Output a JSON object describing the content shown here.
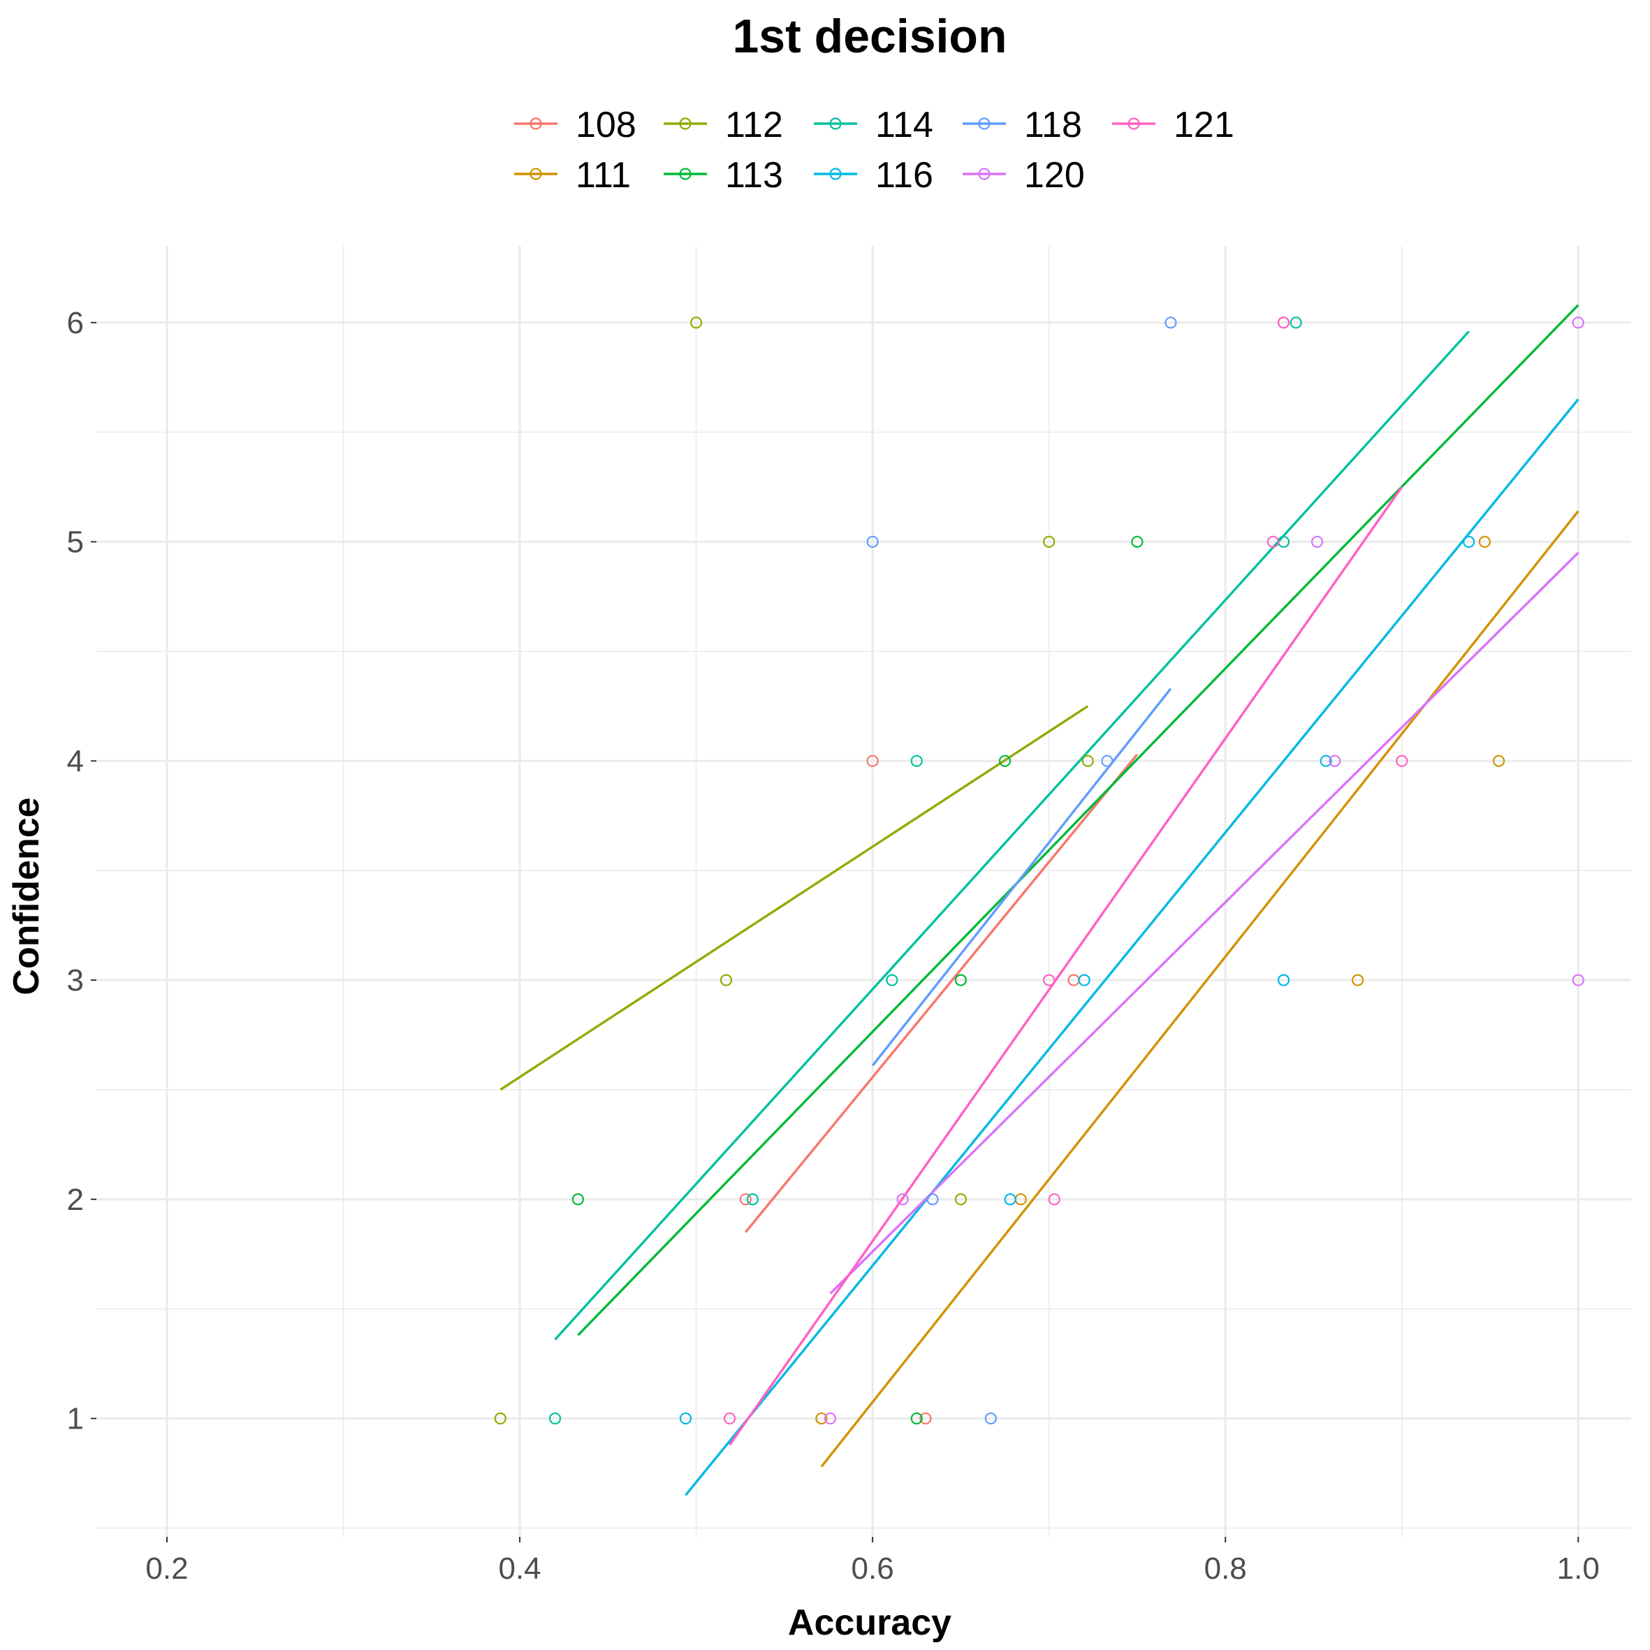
{
  "chart_data": {
    "type": "scatter",
    "title": "1st decision",
    "xlabel": "Accuracy",
    "ylabel": "Confidence",
    "xlim": [
      0.16,
      1.03
    ],
    "ylim": [
      0.46,
      6.35
    ],
    "x_ticks": [
      0.2,
      0.4,
      0.6,
      0.8,
      1.0
    ],
    "x_tick_labels": [
      "0.2",
      "0.4",
      "0.6",
      "0.8",
      "1.0"
    ],
    "y_ticks": [
      1,
      2,
      3,
      4,
      5,
      6
    ],
    "y_tick_labels": [
      "1",
      "2",
      "3",
      "4",
      "5",
      "6"
    ],
    "grid": true,
    "legend_position": "top",
    "series": [
      {
        "name": "108",
        "color": "#F8766D",
        "points": [
          [
            0.528,
            2
          ],
          [
            0.6,
            4
          ],
          [
            0.714,
            3
          ],
          [
            0.63,
            1
          ]
        ],
        "fit": [
          [
            0.528,
            1.85
          ],
          [
            0.75,
            4.03
          ]
        ]
      },
      {
        "name": "111",
        "color": "#D39200",
        "points": [
          [
            0.571,
            1
          ],
          [
            0.684,
            2
          ],
          [
            0.875,
            3
          ],
          [
            0.947,
            5
          ],
          [
            0.955,
            4
          ]
        ],
        "fit": [
          [
            0.571,
            0.78
          ],
          [
            1.0,
            5.14
          ]
        ]
      },
      {
        "name": "112",
        "color": "#93AA00",
        "points": [
          [
            0.389,
            1
          ],
          [
            0.5,
            6
          ],
          [
            0.517,
            3
          ],
          [
            0.65,
            2
          ],
          [
            0.7,
            5
          ],
          [
            0.722,
            4
          ]
        ],
        "fit": [
          [
            0.389,
            2.5
          ],
          [
            0.722,
            4.25
          ]
        ]
      },
      {
        "name": "113",
        "color": "#00BA38",
        "points": [
          [
            0.433,
            2
          ],
          [
            0.625,
            1
          ],
          [
            0.65,
            3
          ],
          [
            0.675,
            4
          ],
          [
            0.75,
            5
          ]
        ],
        "fit": [
          [
            0.433,
            1.38
          ],
          [
            1.0,
            6.08
          ]
        ]
      },
      {
        "name": "114",
        "color": "#00C19F",
        "points": [
          [
            0.42,
            1
          ],
          [
            0.532,
            2
          ],
          [
            0.611,
            3
          ],
          [
            0.625,
            4
          ],
          [
            0.833,
            5
          ],
          [
            0.84,
            6
          ]
        ],
        "fit": [
          [
            0.42,
            1.36
          ],
          [
            0.938,
            5.96
          ]
        ]
      },
      {
        "name": "116",
        "color": "#00B9E3",
        "points": [
          [
            0.494,
            1
          ],
          [
            0.678,
            2
          ],
          [
            0.72,
            3
          ],
          [
            0.833,
            3
          ],
          [
            0.857,
            4
          ],
          [
            0.938,
            5
          ]
        ],
        "fit": [
          [
            0.494,
            0.65
          ],
          [
            1.0,
            5.65
          ]
        ]
      },
      {
        "name": "118",
        "color": "#619CFF",
        "points": [
          [
            0.6,
            5
          ],
          [
            0.634,
            2
          ],
          [
            0.667,
            1
          ],
          [
            0.733,
            4
          ],
          [
            0.769,
            6
          ]
        ],
        "fit": [
          [
            0.6,
            2.61
          ],
          [
            0.769,
            4.33
          ]
        ]
      },
      {
        "name": "120",
        "color": "#DB72FB",
        "points": [
          [
            0.576,
            1
          ],
          [
            0.617,
            2
          ],
          [
            0.833,
            6
          ],
          [
            0.852,
            5
          ],
          [
            0.862,
            4
          ],
          [
            1.0,
            3
          ],
          [
            1.0,
            6
          ]
        ],
        "fit": [
          [
            0.576,
            1.57
          ],
          [
            1.0,
            4.95
          ]
        ]
      },
      {
        "name": "121",
        "color": "#FF61C3",
        "points": [
          [
            0.519,
            1
          ],
          [
            0.7,
            3
          ],
          [
            0.703,
            2
          ],
          [
            0.827,
            5
          ],
          [
            0.833,
            6
          ],
          [
            0.9,
            4
          ]
        ],
        "fit": [
          [
            0.519,
            0.88
          ],
          [
            0.9,
            5.25
          ]
        ]
      }
    ]
  }
}
